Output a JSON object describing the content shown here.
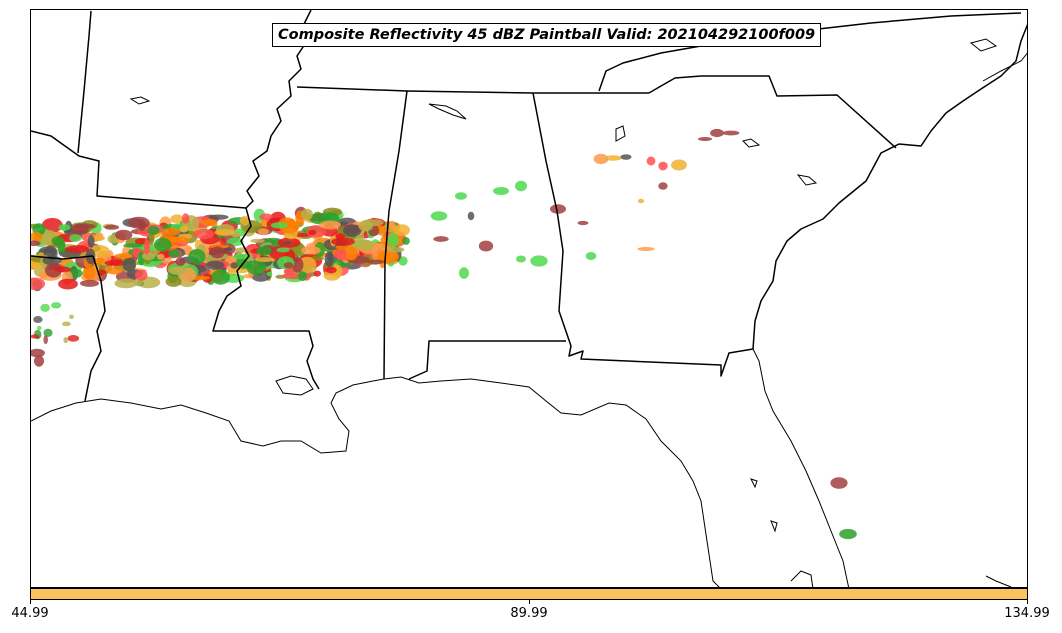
{
  "title": "Composite Reflectivity 45 dBZ Paintball Valid: 202104292100f009",
  "colorbar": {
    "color": "#fdc15f",
    "ticks": [
      "44.99",
      "89.99",
      "134.99"
    ]
  },
  "map": {
    "background": "#ffffff",
    "line_color": "#000000",
    "paint_colors": [
      "#e41a1c",
      "#ff7f00",
      "#8b8b1a",
      "#2ca02c",
      "#555555",
      "#a04040",
      "#4dd94d",
      "#ff9a4a",
      "#f0b030",
      "#b8b04a",
      "#ff5050"
    ]
  }
}
